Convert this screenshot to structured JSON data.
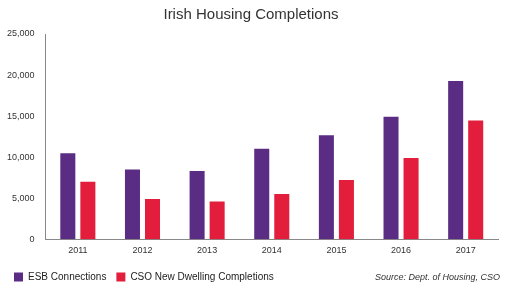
{
  "chart_data": {
    "type": "bar",
    "title": "Irish Housing Completions",
    "categories": [
      "2011",
      "2012",
      "2013",
      "2014",
      "2015",
      "2016",
      "2017"
    ],
    "series": [
      {
        "name": "ESB Connections",
        "color": "#5b2c83",
        "values": [
          10480,
          8490,
          8300,
          11020,
          12670,
          14930,
          19270
        ]
      },
      {
        "name": "CSO New Dwelling Completions",
        "color": "#e31d3c",
        "values": [
          7000,
          4900,
          4580,
          5520,
          7220,
          9880,
          14450
        ]
      }
    ],
    "ylim": [
      0,
      25000
    ],
    "yticks": [
      0,
      {
        "value": 5000,
        "label": "5,000"
      },
      {
        "value": 10000,
        "label": "10,000"
      },
      {
        "value": 15000,
        "label": "15,000"
      },
      {
        "value": 20000,
        "label": "20,000"
      },
      {
        "value": 25000,
        "label": "25,000"
      }
    ],
    "grid": false,
    "legend": "bottom",
    "annotations": [
      "Source: Dept. of Housing, CSO"
    ]
  }
}
